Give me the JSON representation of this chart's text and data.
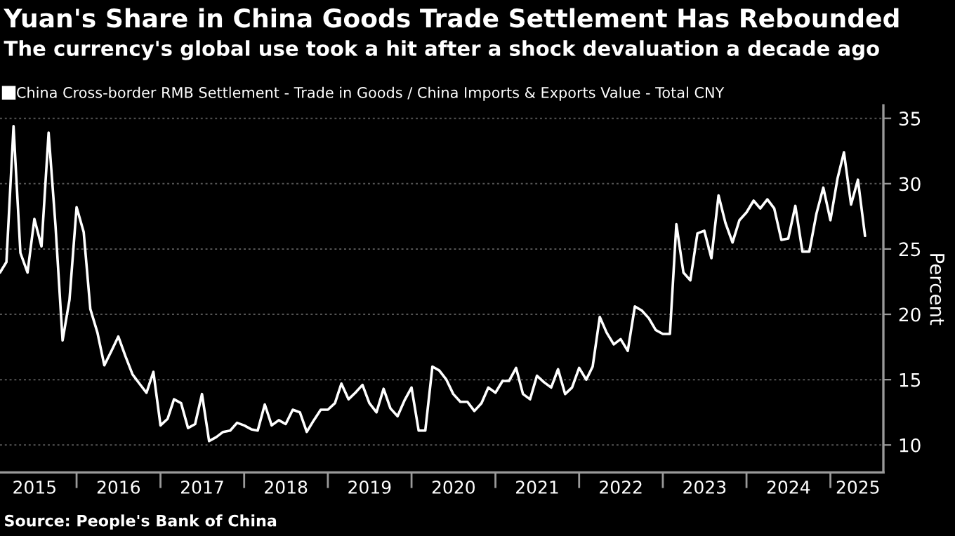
{
  "chart_data": {
    "type": "line",
    "title": "Yuan's Share in China Goods Trade Settlement Has Rebounded",
    "subtitle": "The currency's global use took a hit after a shock devaluation a decade ago",
    "ylabel": "Percent",
    "annotations": [
      "Source: People's Bank of China"
    ],
    "x": [
      "2015-02",
      "2015-03",
      "2015-04",
      "2015-05",
      "2015-06",
      "2015-07",
      "2015-08",
      "2015-09",
      "2015-10",
      "2015-11",
      "2015-12",
      "2016-01",
      "2016-02",
      "2016-03",
      "2016-04",
      "2016-05",
      "2016-06",
      "2016-07",
      "2016-08",
      "2016-09",
      "2016-10",
      "2016-11",
      "2016-12",
      "2017-01",
      "2017-02",
      "2017-03",
      "2017-04",
      "2017-05",
      "2017-06",
      "2017-07",
      "2017-08",
      "2017-09",
      "2017-10",
      "2017-11",
      "2017-12",
      "2018-01",
      "2018-02",
      "2018-03",
      "2018-04",
      "2018-05",
      "2018-06",
      "2018-07",
      "2018-08",
      "2018-09",
      "2018-10",
      "2018-11",
      "2018-12",
      "2019-01",
      "2019-02",
      "2019-03",
      "2019-04",
      "2019-05",
      "2019-06",
      "2019-07",
      "2019-08",
      "2019-09",
      "2019-10",
      "2019-11",
      "2019-12",
      "2020-01",
      "2020-02",
      "2020-03",
      "2020-04",
      "2020-05",
      "2020-06",
      "2020-07",
      "2020-08",
      "2020-09",
      "2020-10",
      "2020-11",
      "2020-12",
      "2021-01",
      "2021-02",
      "2021-03",
      "2021-04",
      "2021-05",
      "2021-06",
      "2021-07",
      "2021-08",
      "2021-09",
      "2021-10",
      "2021-11",
      "2021-12",
      "2022-01",
      "2022-02",
      "2022-03",
      "2022-04",
      "2022-05",
      "2022-06",
      "2022-07",
      "2022-08",
      "2022-09",
      "2022-10",
      "2022-11",
      "2022-12",
      "2023-01",
      "2023-02",
      "2023-03",
      "2023-04",
      "2023-05",
      "2023-06",
      "2023-07",
      "2023-08",
      "2023-09",
      "2023-10",
      "2023-11",
      "2023-12",
      "2024-01",
      "2024-02",
      "2024-03",
      "2024-04",
      "2024-05",
      "2024-06",
      "2024-07",
      "2024-08",
      "2024-09",
      "2024-10",
      "2024-11",
      "2024-12",
      "2025-01",
      "2025-02",
      "2025-03",
      "2025-04",
      "2025-05",
      "2025-06"
    ],
    "series": [
      {
        "name": "China Cross-border RMB Settlement - Trade in Goods / China Imports & Exports Value - Total CNY",
        "color": "#ffffff",
        "values": [
          23.2,
          24.0,
          34.4,
          24.7,
          23.2,
          27.3,
          25.2,
          33.9,
          26.8,
          18.0,
          21.1,
          28.2,
          26.3,
          20.4,
          18.6,
          16.1,
          17.2,
          18.3,
          16.8,
          15.4,
          14.7,
          14.0,
          15.6,
          11.5,
          12.0,
          13.5,
          13.2,
          11.3,
          11.6,
          13.9,
          10.3,
          10.6,
          11.0,
          11.1,
          11.7,
          11.5,
          11.2,
          11.1,
          13.1,
          11.5,
          11.9,
          11.6,
          12.7,
          12.5,
          11.0,
          11.9,
          12.7,
          12.7,
          13.2,
          14.7,
          13.5,
          14.0,
          14.6,
          13.2,
          12.5,
          14.3,
          12.8,
          12.2,
          13.4,
          14.4,
          11.1,
          11.1,
          16.0,
          15.7,
          15.0,
          13.9,
          13.3,
          13.3,
          12.6,
          13.2,
          14.4,
          14.0,
          14.9,
          14.9,
          15.9,
          13.9,
          13.5,
          15.3,
          14.8,
          14.4,
          15.8,
          13.9,
          14.4,
          15.9,
          15.0,
          16.0,
          19.8,
          18.6,
          17.7,
          18.1,
          17.2,
          20.6,
          20.3,
          19.7,
          18.8,
          18.5,
          18.5,
          26.9,
          23.2,
          22.6,
          26.2,
          26.4,
          24.3,
          29.1,
          27.0,
          25.5,
          27.2,
          27.8,
          28.7,
          28.1,
          28.8,
          28.1,
          25.7,
          25.8,
          28.3,
          24.8,
          24.8,
          27.7,
          29.7,
          27.2,
          30.4,
          32.4,
          28.4,
          30.3,
          26.0
        ]
      }
    ],
    "xlim": [
      "2015-02-01",
      "2025-08-20"
    ],
    "xticks": [
      {
        "value": "2016-01-01",
        "label": null
      },
      {
        "value": "2017-01-01",
        "label": null
      },
      {
        "value": "2018-01-01",
        "label": null
      },
      {
        "value": "2019-01-01",
        "label": null
      },
      {
        "value": "2020-01-01",
        "label": null
      },
      {
        "value": "2021-01-01",
        "label": null
      },
      {
        "value": "2022-01-01",
        "label": null
      },
      {
        "value": "2023-01-01",
        "label": null
      },
      {
        "value": "2024-01-01",
        "label": null
      },
      {
        "value": "2025-01-01",
        "label": null
      },
      {
        "value": "2015-07-02",
        "label": "2015"
      },
      {
        "value": "2016-07-02",
        "label": "2016"
      },
      {
        "value": "2017-07-02",
        "label": "2017"
      },
      {
        "value": "2018-07-02",
        "label": "2018"
      },
      {
        "value": "2019-07-02",
        "label": "2019"
      },
      {
        "value": "2020-07-02",
        "label": "2020"
      },
      {
        "value": "2021-07-02",
        "label": "2021"
      },
      {
        "value": "2022-07-02",
        "label": "2022"
      },
      {
        "value": "2023-07-02",
        "label": "2023"
      },
      {
        "value": "2024-07-02",
        "label": "2024"
      },
      {
        "value": "2025-05-01",
        "label": "2025"
      }
    ],
    "ylim": [
      7.9,
      36
    ],
    "yticks": [
      10,
      15,
      20,
      25,
      30,
      35
    ],
    "grid": "y",
    "legend": "top left",
    "marker": "none",
    "line_style": "solid"
  }
}
